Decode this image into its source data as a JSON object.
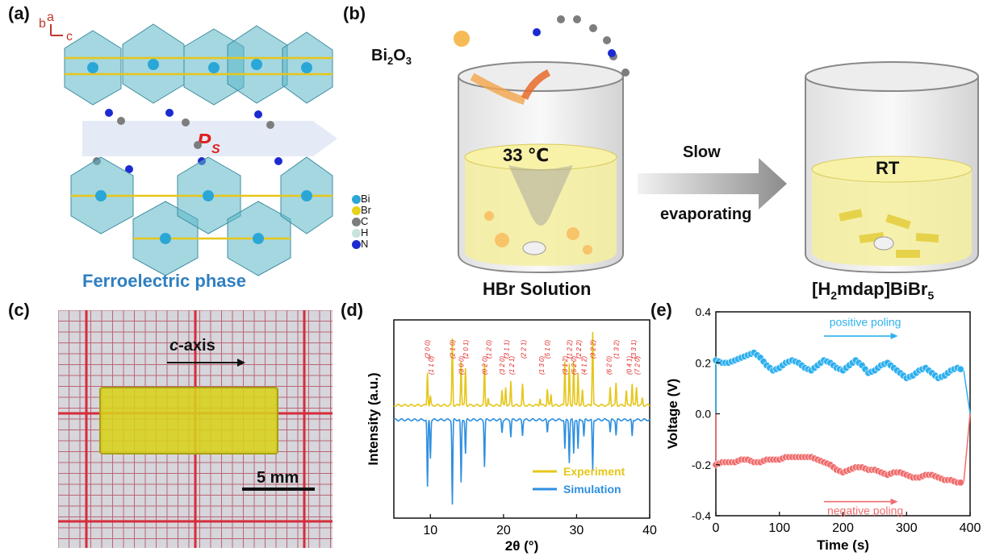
{
  "panels": {
    "a": "(a)",
    "b": "(b)",
    "c": "(c)",
    "d": "(d)",
    "e": "(e)"
  },
  "panel_a": {
    "axes": {
      "b": "b",
      "a": "a",
      "c": "c"
    },
    "ps_label": "P",
    "ps_sub": "S",
    "legend": [
      "Bi",
      "Br",
      "C",
      "H",
      "N"
    ],
    "legend_colors": [
      "#2aa7d6",
      "#e8d21a",
      "#7d7d7d",
      "#c9e3de",
      "#1c2ad1"
    ],
    "caption": "Ferroelectric phase"
  },
  "panel_b": {
    "reagent": "Bi",
    "reagent_sub": "2",
    "reagent_tail": "O",
    "reagent_sub2": "3",
    "temp": "33 ℃",
    "arrow_top": "Slow",
    "arrow_bottom": "evaporating",
    "rt": "RT",
    "left_caption": "HBr Solution",
    "right_caption_pre": "[H",
    "right_caption_sub": "2",
    "right_caption_mid": "mdap]BiBr",
    "right_caption_sub2": "5"
  },
  "panel_c": {
    "axis_pre": "c",
    "axis_post": "-axis",
    "scale": "5 mm"
  },
  "chart_data": [
    {
      "type": "line",
      "panel": "d",
      "xlabel": "2θ (°)",
      "ylabel": "Intensity (a.u.)",
      "xlim": [
        5,
        40
      ],
      "xticks": [
        10,
        20,
        30,
        40
      ],
      "series": [
        {
          "name": "Experiment",
          "color": "#e6c619",
          "peaks": [
            [
              9.6,
              0.45
            ],
            [
              10.0,
              0.12
            ],
            [
              13.0,
              0.9
            ],
            [
              14.2,
              0.6
            ],
            [
              14.8,
              0.5
            ],
            [
              17.4,
              0.55
            ],
            [
              17.9,
              0.1
            ],
            [
              19.8,
              0.2
            ],
            [
              20.3,
              0.25
            ],
            [
              21.0,
              0.32
            ],
            [
              22.6,
              0.28
            ],
            [
              25.0,
              0.1
            ],
            [
              26.0,
              0.22
            ],
            [
              26.5,
              0.15
            ],
            [
              28.4,
              0.6
            ],
            [
              29.0,
              0.55
            ],
            [
              29.6,
              0.6
            ],
            [
              30.2,
              0.45
            ],
            [
              30.8,
              0.2
            ],
            [
              32.2,
              1.0
            ],
            [
              34.6,
              0.25
            ],
            [
              35.4,
              0.3
            ],
            [
              36.8,
              0.2
            ],
            [
              37.6,
              0.3
            ],
            [
              38.2,
              0.25
            ],
            [
              39.0,
              0.1
            ]
          ]
        },
        {
          "name": "Simulation",
          "color": "#2e8fe0",
          "peaks": [
            [
              9.6,
              0.8
            ],
            [
              10.0,
              0.45
            ],
            [
              13.0,
              1.0
            ],
            [
              14.2,
              0.75
            ],
            [
              14.8,
              0.4
            ],
            [
              17.4,
              0.55
            ],
            [
              19.8,
              0.15
            ],
            [
              21.0,
              0.2
            ],
            [
              22.6,
              0.18
            ],
            [
              26.0,
              0.15
            ],
            [
              28.4,
              0.35
            ],
            [
              29.0,
              0.5
            ],
            [
              29.6,
              0.4
            ],
            [
              30.2,
              0.35
            ],
            [
              31.0,
              0.2
            ],
            [
              32.2,
              0.6
            ],
            [
              34.6,
              0.15
            ],
            [
              35.4,
              0.18
            ],
            [
              37.6,
              0.2
            ]
          ]
        }
      ],
      "peak_labels": [
        {
          "x": 9.6,
          "text": "(2 0 0)"
        },
        {
          "x": 10.1,
          "text": "(1 1 0)"
        },
        {
          "x": 13.0,
          "text": "(2 1 0)"
        },
        {
          "x": 14.2,
          "text": "(3 0 0)"
        },
        {
          "x": 14.8,
          "text": "(2 0 1)"
        },
        {
          "x": 17.4,
          "text": "(0 2 0)"
        },
        {
          "x": 18.0,
          "text": "(1 2 0)"
        },
        {
          "x": 19.8,
          "text": "(3 2 0)"
        },
        {
          "x": 20.4,
          "text": "(3 1 1)"
        },
        {
          "x": 21.1,
          "text": "(1 2 1)"
        },
        {
          "x": 22.7,
          "text": "(2 2 1)"
        },
        {
          "x": 25.2,
          "text": "(1 3 0)"
        },
        {
          "x": 26.0,
          "text": "(5 1 0)"
        },
        {
          "x": 28.4,
          "text": "(3 1 2)"
        },
        {
          "x": 29.0,
          "text": "(1 2 2)"
        },
        {
          "x": 29.6,
          "text": "(5 2 0)"
        },
        {
          "x": 30.3,
          "text": "(2 2 2)"
        },
        {
          "x": 31.0,
          "text": "(4 1 2)"
        },
        {
          "x": 32.2,
          "text": "(3 2 2)"
        },
        {
          "x": 34.4,
          "text": "(6 2 0)"
        },
        {
          "x": 35.4,
          "text": "(1 3 2)"
        },
        {
          "x": 37.2,
          "text": "(0 4 1)"
        },
        {
          "x": 37.8,
          "text": "(3 3 1)"
        },
        {
          "x": 38.3,
          "text": "(7 2 0)"
        }
      ]
    },
    {
      "type": "line",
      "panel": "e",
      "xlabel": "Time (s)",
      "ylabel": "Voltage (V)",
      "xlim": [
        0,
        400
      ],
      "ylim": [
        -0.4,
        0.4
      ],
      "xticks": [
        0,
        100,
        200,
        300,
        400
      ],
      "yticks": [
        -0.4,
        -0.2,
        0.0,
        0.2,
        0.4
      ],
      "series": [
        {
          "name": "positive poling",
          "color": "#2fb0ee",
          "x": [
            0,
            10,
            20,
            30,
            40,
            50,
            60,
            70,
            80,
            90,
            100,
            110,
            120,
            130,
            140,
            150,
            160,
            170,
            180,
            190,
            200,
            210,
            220,
            230,
            240,
            250,
            260,
            270,
            280,
            290,
            300,
            310,
            320,
            330,
            340,
            350,
            360,
            370,
            380,
            390
          ],
          "y": [
            0.21,
            0.2,
            0.2,
            0.21,
            0.22,
            0.23,
            0.24,
            0.22,
            0.19,
            0.17,
            0.18,
            0.2,
            0.21,
            0.2,
            0.18,
            0.17,
            0.19,
            0.21,
            0.2,
            0.18,
            0.17,
            0.19,
            0.21,
            0.19,
            0.16,
            0.17,
            0.19,
            0.2,
            0.18,
            0.16,
            0.14,
            0.15,
            0.17,
            0.18,
            0.16,
            0.14,
            0.15,
            0.17,
            0.18,
            0.17
          ]
        },
        {
          "name": "negative poling",
          "color": "#f06d6d",
          "x": [
            0,
            10,
            20,
            30,
            40,
            50,
            60,
            70,
            80,
            90,
            100,
            110,
            120,
            130,
            140,
            150,
            160,
            170,
            180,
            190,
            200,
            210,
            220,
            230,
            240,
            250,
            260,
            270,
            280,
            290,
            300,
            310,
            320,
            330,
            340,
            350,
            360,
            370,
            380,
            390
          ],
          "y": [
            -0.2,
            -0.19,
            -0.19,
            -0.19,
            -0.18,
            -0.18,
            -0.19,
            -0.19,
            -0.18,
            -0.18,
            -0.18,
            -0.17,
            -0.17,
            -0.17,
            -0.17,
            -0.17,
            -0.18,
            -0.19,
            -0.2,
            -0.22,
            -0.23,
            -0.22,
            -0.21,
            -0.21,
            -0.22,
            -0.22,
            -0.23,
            -0.24,
            -0.23,
            -0.23,
            -0.24,
            -0.25,
            -0.25,
            -0.24,
            -0.24,
            -0.25,
            -0.26,
            -0.26,
            -0.27,
            -0.27
          ]
        }
      ]
    }
  ]
}
